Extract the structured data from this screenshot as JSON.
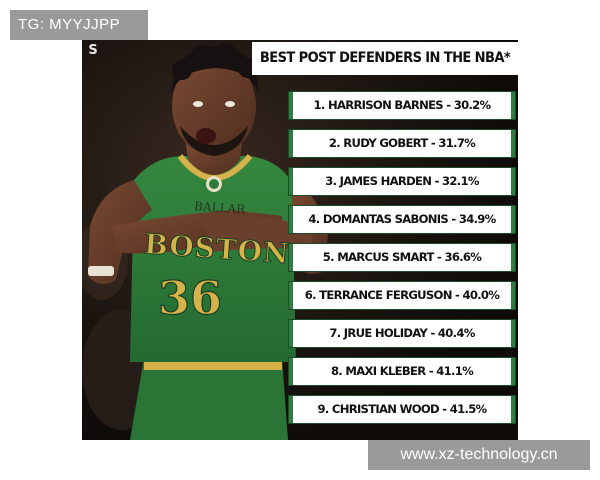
{
  "watermark_top": "TG: MYYJJPP",
  "watermark_bottom": "www.xz-technology.cn",
  "poster": {
    "logo_letter": "S",
    "title": "BEST POST DEFENDERS IN THE NBA*",
    "jersey": {
      "team_text": "BOSTON",
      "number": "36",
      "color": "#2e7a3c",
      "trim_color": "#d6b24a"
    },
    "ranking": [
      "1. HARRISON BARNES - 30.2%",
      "2. RUDY GOBERT - 31.7%",
      "3. JAMES HARDEN - 32.1%",
      "4. DOMANTAS SABONIS - 34.9%",
      "5. MARCUS SMART - 36.6%",
      "6. TERRANCE FERGUSON - 40.0%",
      "7. JRUE HOLIDAY - 40.4%",
      "8. MAXI KLEBER - 41.1%",
      "9. CHRISTIAN WOOD - 41.5%"
    ]
  }
}
